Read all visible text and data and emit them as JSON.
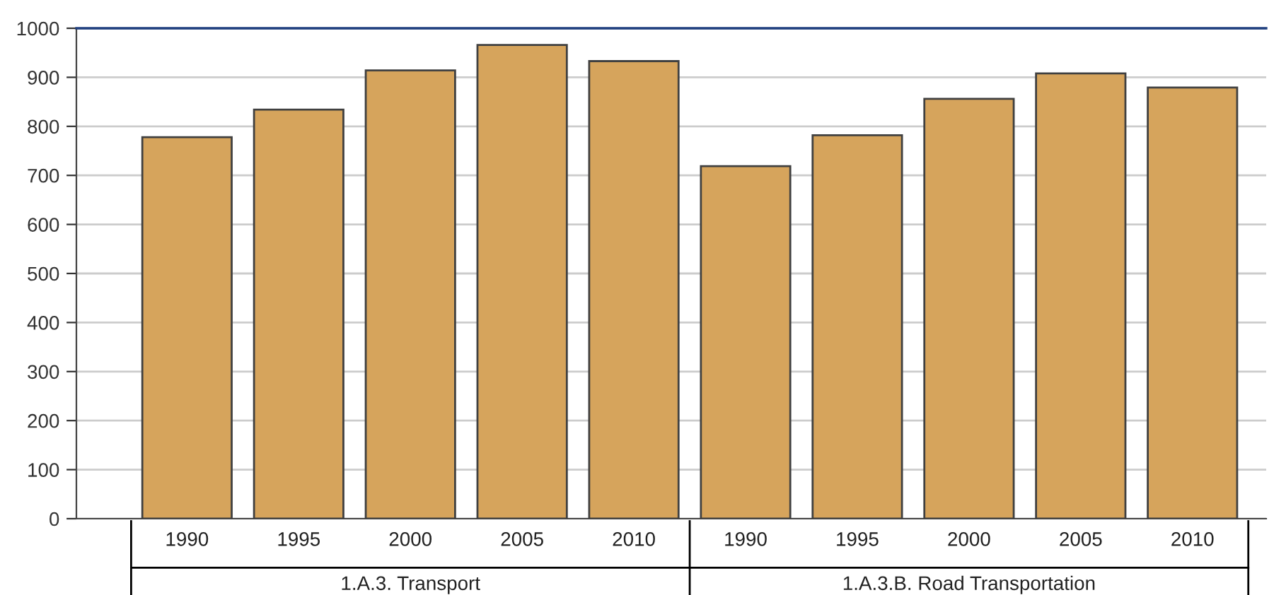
{
  "chart_data": {
    "type": "bar",
    "categories": [
      "1990",
      "1995",
      "2000",
      "2005",
      "2010",
      "1990",
      "1995",
      "2000",
      "2005",
      "2010"
    ],
    "values": [
      778,
      834,
      914,
      966,
      933,
      719,
      782,
      856,
      908,
      879
    ],
    "color": "#d6a45c",
    "ylim": [
      0,
      1000
    ],
    "yticks": [
      0,
      100,
      200,
      300,
      400,
      500,
      600,
      700,
      800,
      900,
      1000
    ],
    "grid": "y",
    "legend": false,
    "annotations": [
      "1.A.3. Transport",
      "1.A.3.B. Road Transportation"
    ]
  }
}
